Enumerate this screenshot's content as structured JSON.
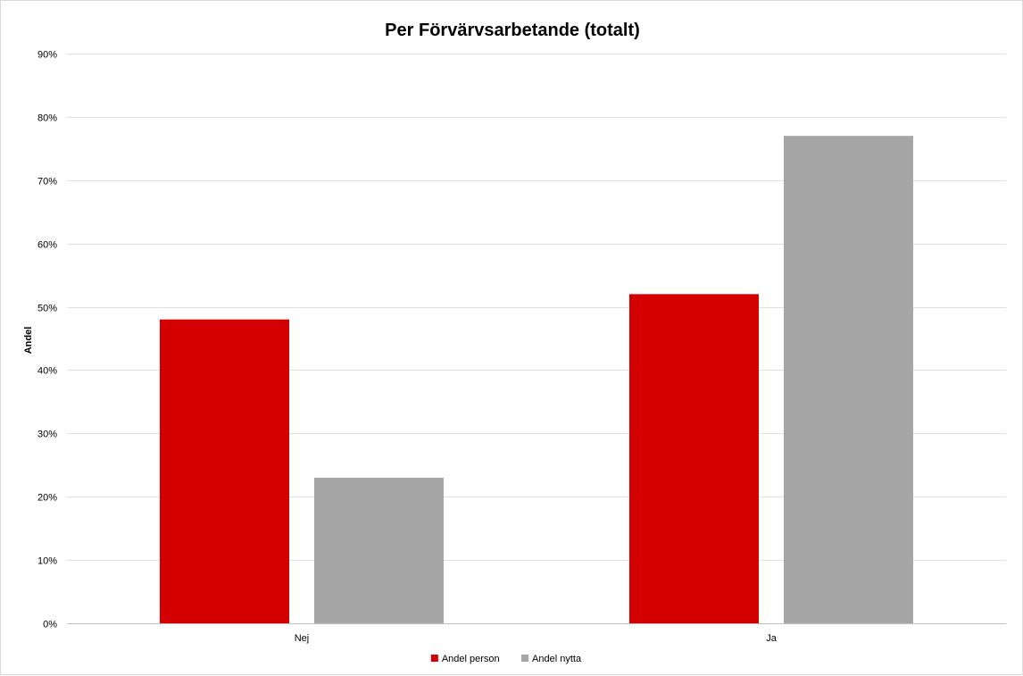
{
  "chart_data": {
    "type": "bar",
    "title": "Per Förvärvsarbetande (totalt)",
    "xlabel": "",
    "ylabel": "Andel",
    "categories": [
      "Nej",
      "Ja"
    ],
    "series": [
      {
        "name": "Andel person",
        "values": [
          0.48,
          0.52
        ],
        "color": "#d40000"
      },
      {
        "name": "Andel nytta",
        "values": [
          0.23,
          0.77
        ],
        "color": "#a6a6a6"
      }
    ],
    "ylim": [
      0,
      0.9
    ],
    "yticks": [
      0,
      0.1,
      0.2,
      0.3,
      0.4,
      0.5,
      0.6,
      0.7,
      0.8,
      0.9
    ],
    "ytick_labels": [
      "0%",
      "10%",
      "20%",
      "30%",
      "40%",
      "50%",
      "60%",
      "70%",
      "80%",
      "90%"
    ],
    "grid": true,
    "legend_position": "bottom"
  }
}
